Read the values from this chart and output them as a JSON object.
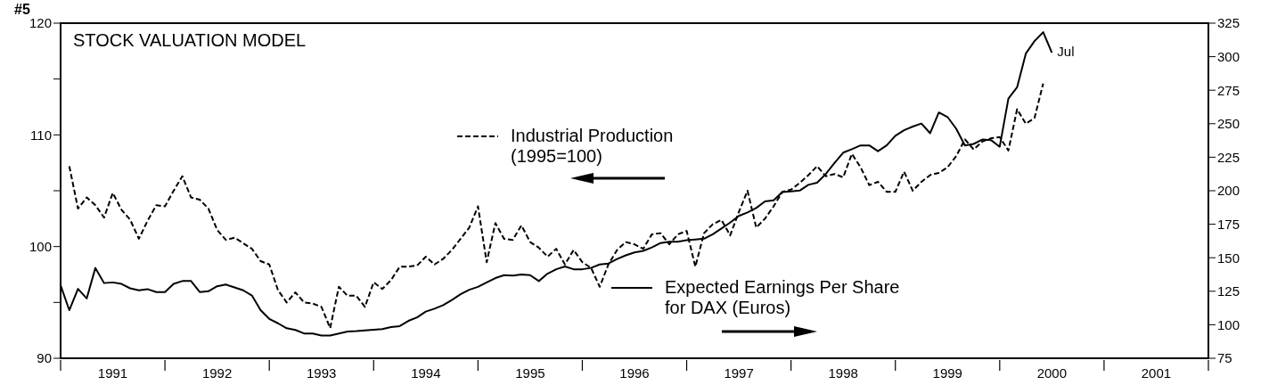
{
  "chart_data": {
    "type": "line",
    "title": "STOCK VALUATION MODEL",
    "annotations": [
      "#5",
      "Jul"
    ],
    "x": [
      "1991-01",
      "1991-02",
      "1991-03",
      "1991-04",
      "1991-05",
      "1991-06",
      "1991-07",
      "1991-08",
      "1991-09",
      "1991-10",
      "1991-11",
      "1991-12",
      "1992-01",
      "1992-02",
      "1992-03",
      "1992-04",
      "1992-05",
      "1992-06",
      "1992-07",
      "1992-08",
      "1992-09",
      "1992-10",
      "1992-11",
      "1992-12",
      "1993-01",
      "1993-02",
      "1993-03",
      "1993-04",
      "1993-05",
      "1993-06",
      "1993-07",
      "1993-08",
      "1993-09",
      "1993-10",
      "1993-11",
      "1993-12",
      "1994-01",
      "1994-02",
      "1994-03",
      "1994-04",
      "1994-05",
      "1994-06",
      "1994-07",
      "1994-08",
      "1994-09",
      "1994-10",
      "1994-11",
      "1994-12",
      "1995-01",
      "1995-02",
      "1995-03",
      "1995-04",
      "1995-05",
      "1995-06",
      "1995-07",
      "1995-08",
      "1995-09",
      "1995-10",
      "1995-11",
      "1995-12",
      "1996-01",
      "1996-02",
      "1996-03",
      "1996-04",
      "1996-05",
      "1996-06",
      "1996-07",
      "1996-08",
      "1996-09",
      "1996-10",
      "1996-11",
      "1996-12",
      "1997-01",
      "1997-02",
      "1997-03",
      "1997-04",
      "1997-05",
      "1997-06",
      "1997-07",
      "1997-08",
      "1997-09",
      "1997-10",
      "1997-11",
      "1997-12",
      "1998-01",
      "1998-02",
      "1998-03",
      "1998-04",
      "1998-05",
      "1998-06",
      "1998-07",
      "1998-08",
      "1998-09",
      "1998-10",
      "1998-11",
      "1998-12",
      "1999-01",
      "1999-02",
      "1999-03",
      "1999-04",
      "1999-05",
      "1999-06",
      "1999-07",
      "1999-08",
      "1999-09",
      "1999-10",
      "1999-11",
      "1999-12",
      "2000-01",
      "2000-02",
      "2000-03",
      "2000-04",
      "2000-05",
      "2000-06",
      "2000-07"
    ],
    "series": [
      {
        "name": "Industrial Production (1995=100)",
        "color": "#000000",
        "line_style": "dashed",
        "values": [
          null,
          107.2,
          103.4,
          104.4,
          103.7,
          102.6,
          104.8,
          103.3,
          102.4,
          100.7,
          102.3,
          103.7,
          103.6,
          105.0,
          106.3,
          104.4,
          104.2,
          103.4,
          101.5,
          100.6,
          100.8,
          100.3,
          99.8,
          98.7,
          98.4,
          96.1,
          95.0,
          95.9,
          95.0,
          94.9,
          94.6,
          92.7,
          96.4,
          95.6,
          95.6,
          94.6,
          96.8,
          96.2,
          97.0,
          98.2,
          98.2,
          98.3,
          99.1,
          98.4,
          98.9,
          99.7,
          100.7,
          101.7,
          103.6,
          98.6,
          102.1,
          100.7,
          100.6,
          101.9,
          100.4,
          99.9,
          99.1,
          99.8,
          98.4,
          99.7,
          98.6,
          98.1,
          96.4,
          98.4,
          99.7,
          100.4,
          100.2,
          99.8,
          101.1,
          101.2,
          100.2,
          101.1,
          101.4,
          98.2,
          101.2,
          102.0,
          102.4,
          101.0,
          103.1,
          105.0,
          101.7,
          102.5,
          103.6,
          104.9,
          105.1,
          105.7,
          106.4,
          107.2,
          106.3,
          106.5,
          106.2,
          108.3,
          107.1,
          105.5,
          105.8,
          104.9,
          104.9,
          106.7,
          105.0,
          105.8,
          106.4,
          106.6,
          107.1,
          108.1,
          109.6,
          108.7,
          109.4,
          109.7,
          109.8,
          108.6,
          112.3,
          111.0,
          111.5,
          114.6,
          null
        ]
      },
      {
        "name": "Expected Earnings Per Share for DAX (Euros)",
        "color": "#000000",
        "line_style": "solid",
        "axis": "y2",
        "values": [
          129.4,
          110.9,
          126.8,
          119.6,
          142.4,
          131.1,
          131.6,
          130.5,
          127.2,
          125.7,
          126.6,
          124.4,
          124.4,
          130.5,
          132.6,
          132.6,
          124.4,
          125.0,
          128.7,
          130.0,
          127.9,
          125.7,
          121.8,
          110.9,
          104.4,
          101.1,
          97.4,
          96.1,
          93.5,
          93.5,
          92.0,
          92.0,
          93.5,
          95.0,
          95.2,
          95.7,
          96.3,
          96.8,
          98.3,
          99.0,
          102.9,
          105.5,
          109.8,
          112.0,
          114.6,
          118.5,
          122.8,
          126.1,
          128.3,
          131.6,
          134.8,
          137.0,
          136.6,
          137.5,
          137.0,
          132.6,
          138.1,
          141.4,
          143.5,
          141.4,
          141.4,
          142.4,
          145.0,
          145.7,
          149.0,
          151.8,
          154.0,
          155.1,
          157.7,
          161.0,
          162.0,
          162.0,
          163.1,
          163.6,
          164.2,
          167.5,
          171.8,
          176.2,
          181.2,
          183.8,
          187.1,
          192.0,
          192.9,
          199.0,
          199.5,
          200.1,
          204.4,
          206.0,
          212.5,
          220.7,
          228.4,
          231.0,
          233.8,
          233.8,
          229.5,
          233.8,
          241.0,
          245.1,
          247.9,
          250.1,
          242.9,
          258.4,
          255.0,
          246.2,
          233.8,
          234.9,
          238.2,
          237.8,
          232.8,
          268.7,
          277.2,
          302.3,
          311.6,
          318.3,
          303.0
        ]
      }
    ],
    "xlim": [
      "1991-01",
      "2002-01"
    ],
    "xticks": [
      {
        "value": "1991-01",
        "label": null
      },
      {
        "value": "1991-07",
        "label": "1991"
      },
      {
        "value": "1992-01",
        "label": null
      },
      {
        "value": "1992-07",
        "label": "1992"
      },
      {
        "value": "1993-01",
        "label": null
      },
      {
        "value": "1993-07",
        "label": "1993"
      },
      {
        "value": "1994-01",
        "label": null
      },
      {
        "value": "1994-07",
        "label": "1994"
      },
      {
        "value": "1995-01",
        "label": null
      },
      {
        "value": "1995-07",
        "label": "1995"
      },
      {
        "value": "1996-01",
        "label": null
      },
      {
        "value": "1996-07",
        "label": "1996"
      },
      {
        "value": "1997-01",
        "label": null
      },
      {
        "value": "1997-07",
        "label": "1997"
      },
      {
        "value": "1998-01",
        "label": null
      },
      {
        "value": "1998-07",
        "label": "1998"
      },
      {
        "value": "1999-01",
        "label": null
      },
      {
        "value": "1999-07",
        "label": "1999"
      },
      {
        "value": "2000-01",
        "label": null
      },
      {
        "value": "2000-07",
        "label": "2000"
      },
      {
        "value": "2001-01",
        "label": null
      },
      {
        "value": "2001-07",
        "label": "2001"
      },
      {
        "value": "2002-01",
        "label": null
      }
    ],
    "ylim": [
      90,
      120
    ],
    "yticks": [
      90,
      {
        "value": 95,
        "label": null
      },
      100,
      {
        "value": 105,
        "label": null
      },
      110,
      {
        "value": 115,
        "label": null
      },
      120
    ],
    "y2lim": [
      75,
      325
    ],
    "y2ticks": [
      75,
      100,
      125,
      150,
      175,
      200,
      225,
      250,
      275,
      300,
      325
    ],
    "legend": "center",
    "marker": "none"
  }
}
